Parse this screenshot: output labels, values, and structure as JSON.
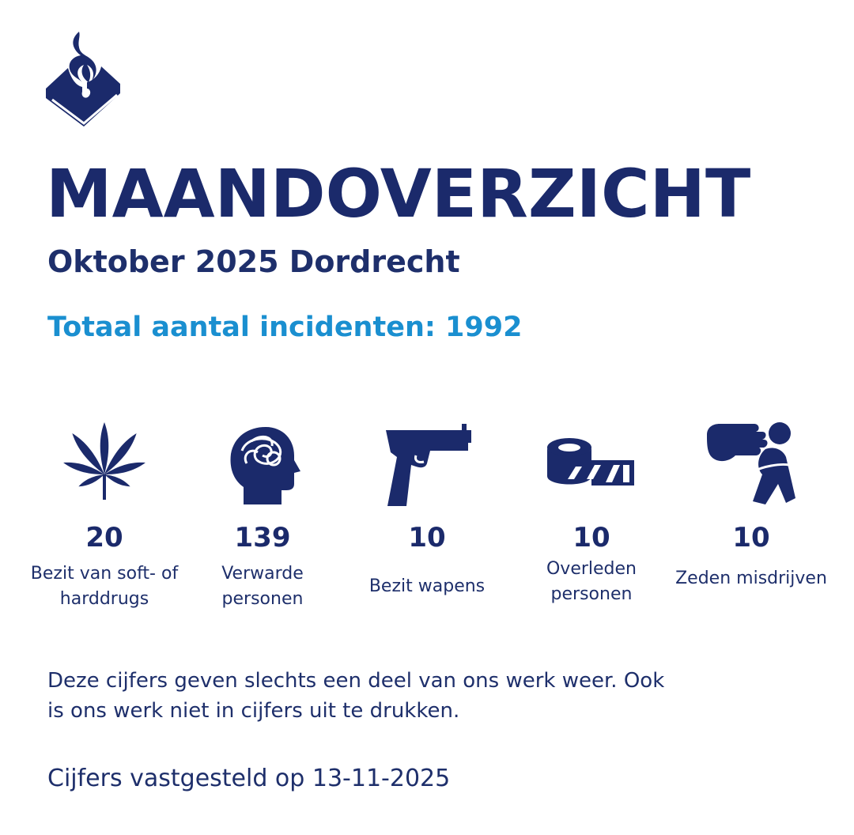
{
  "header": {
    "logo_icon": "police-flame-logo-icon",
    "title": "MAANDOVERZICHT",
    "subtitle": "Oktober 2025 Dordrecht",
    "total": "Totaal aantal incidenten: 1992"
  },
  "stats": [
    {
      "icon": "cannabis-leaf-icon",
      "value": "20",
      "label_line1": "Bezit van soft- of",
      "label_line2": "harddrugs"
    },
    {
      "icon": "confused-head-icon",
      "value": "139",
      "label_line1": "Verwarde",
      "label_line2": "personen"
    },
    {
      "icon": "pistol-icon",
      "value": "10",
      "label_line1": "Bezit wapens",
      "label_line2": ""
    },
    {
      "icon": "barrier-tape-icon",
      "value": "10",
      "label_line1": "Overleden",
      "label_line2": "personen"
    },
    {
      "icon": "sexual-offense-icon",
      "value": "10",
      "label_line1": "Zeden misdrijven",
      "label_line2": ""
    }
  ],
  "footer": {
    "note": "Deze cijfers geven slechts een deel van ons werk weer. Ook is ons werk niet in cijfers uit te drukken.",
    "note_line1": "Deze cijfers geven slechts een deel van ons werk weer. Ook",
    "note_line2": "is ons werk niet in cijfers uit te drukken.",
    "date": "Cijfers vastgesteld op 13-11-2025"
  },
  "colors": {
    "navy": "#1b2a6b",
    "accent": "#1a8fd0",
    "background": "#ffffff"
  }
}
